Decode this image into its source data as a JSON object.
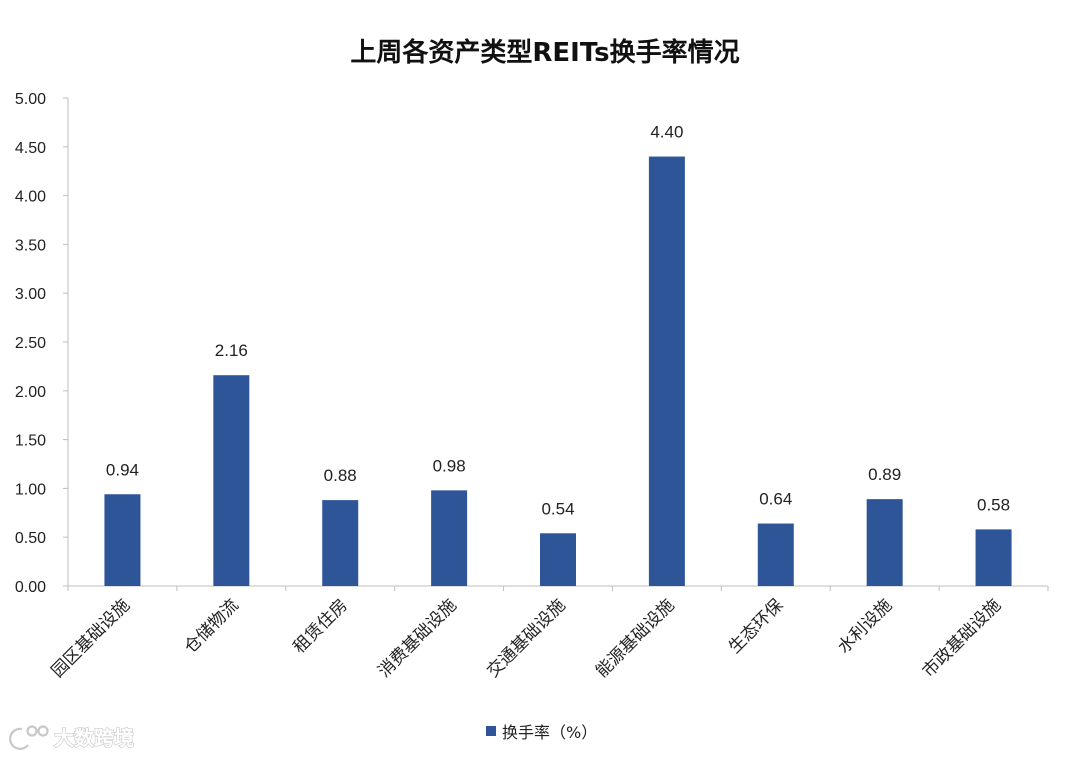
{
  "chart_data": {
    "type": "bar",
    "title": "上周各资产类型REITs换手率情况",
    "categories": [
      "园区基础设施",
      "仓储物流",
      "租赁住房",
      "消费基础设施",
      "交通基础设施",
      "能源基础设施",
      "生态环保",
      "水利设施",
      "市政基础设施"
    ],
    "series": [
      {
        "name": "换手率（%）",
        "values": [
          0.94,
          2.16,
          0.88,
          0.98,
          0.54,
          4.4,
          0.64,
          0.89,
          0.58
        ],
        "labels": [
          "0.94",
          "2.16",
          "0.88",
          "0.98",
          "0.54",
          "4.40",
          "0.64",
          "0.89",
          "0.58"
        ],
        "color": "#2e5597"
      }
    ],
    "ylim": [
      0,
      5
    ],
    "yticks": [
      "0.00",
      "0.50",
      "1.00",
      "1.50",
      "2.00",
      "2.50",
      "3.00",
      "3.50",
      "4.00",
      "4.50",
      "5.00"
    ],
    "xlabel": "",
    "ylabel": "",
    "grid": false,
    "legend": "bottom-center",
    "axis_color": "#bfbfbf"
  },
  "watermark": {
    "text": "大数跨境"
  }
}
